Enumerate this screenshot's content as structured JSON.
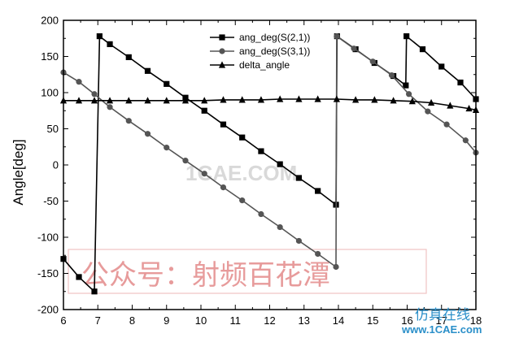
{
  "chart_data": {
    "type": "line",
    "title": "",
    "xlabel": "",
    "ylabel": "Angle[deg]",
    "xlim": [
      6,
      18
    ],
    "ylim": [
      -200,
      200
    ],
    "xticks": [
      "6",
      "7",
      "8",
      "9",
      "10",
      "11",
      "12",
      "13",
      "14",
      "15",
      "16",
      "17",
      "18"
    ],
    "yticks": [
      "200",
      "150",
      "100",
      "50",
      "0",
      "-50",
      "-100",
      "-150",
      "-200"
    ],
    "grid": false,
    "legend_position": "top-center",
    "series": [
      {
        "name": "ang_deg(S(2,1))",
        "marker": "square",
        "color": "#000000",
        "x": [
          6.0,
          6.45,
          6.9,
          7.05,
          7.35,
          7.9,
          8.45,
          9.0,
          9.55,
          10.1,
          10.65,
          11.2,
          11.75,
          12.3,
          12.85,
          13.4,
          13.93,
          13.96,
          14.5,
          15.05,
          15.6,
          15.96,
          15.98,
          16.45,
          17.0,
          17.55,
          18.0
        ],
        "y": [
          -130,
          -155,
          -175,
          178,
          167,
          149,
          130,
          112,
          93,
          75,
          56,
          38,
          19,
          1,
          -18,
          -36,
          -55,
          178,
          160,
          141,
          123,
          110,
          178,
          160,
          136,
          114,
          91
        ]
      },
      {
        "name": "ang_deg(S(3,1))",
        "marker": "circle",
        "color": "#555555",
        "x": [
          6.0,
          6.45,
          6.9,
          7.35,
          7.9,
          8.45,
          9.0,
          9.55,
          10.1,
          10.65,
          11.2,
          11.75,
          12.3,
          12.85,
          13.4,
          13.93,
          13.95,
          14.45,
          15.0,
          15.55,
          16.05,
          16.6,
          17.15,
          17.7,
          18.0
        ],
        "y": [
          128,
          115,
          98,
          80,
          61,
          43,
          24,
          6,
          -12,
          -31,
          -49,
          -68,
          -86,
          -105,
          -123,
          -141,
          178,
          161,
          143,
          124,
          98,
          74,
          56,
          34,
          17
        ]
      },
      {
        "name": "delta_angle",
        "marker": "triangle",
        "color": "#000000",
        "x": [
          6.0,
          6.45,
          6.9,
          7.35,
          7.9,
          8.45,
          9.0,
          9.55,
          10.1,
          10.65,
          11.2,
          11.75,
          12.3,
          12.85,
          13.4,
          13.95,
          14.5,
          15.05,
          15.6,
          16.15,
          16.7,
          17.25,
          17.8,
          18.0
        ],
        "y": [
          89,
          89,
          89,
          89,
          89,
          89,
          89,
          89,
          89,
          90,
          90,
          90,
          91,
          91,
          91,
          91,
          90,
          90,
          89,
          88,
          86,
          82,
          78,
          76
        ]
      }
    ]
  },
  "watermark": {
    "chinese_text": "公众号：射频百花潭",
    "english_text": "1CAE.COM",
    "color": "#e79b9b"
  },
  "brand": {
    "chinese_text": "仿真在线",
    "url_text": "www.1CAE.com",
    "color": "#2a8fc9"
  }
}
